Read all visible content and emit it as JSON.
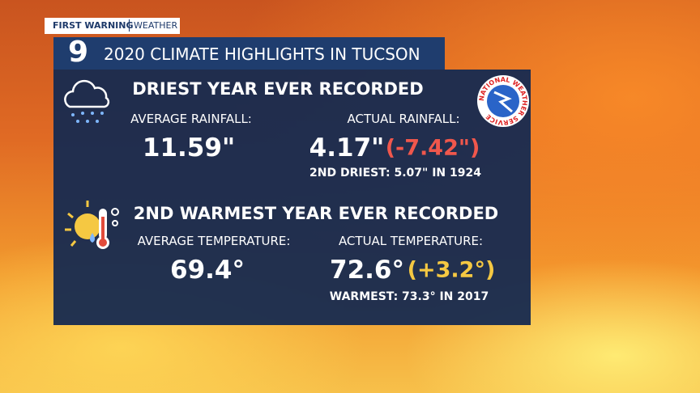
{
  "brand": {
    "name": "FIRST WARNING",
    "section": "WEATHER",
    "channel": "9"
  },
  "title": "2020 CLIMATE HIGHLIGHTS IN TUCSON",
  "logo": "NATIONAL WEATHER SERVICE",
  "rain": {
    "heading": "DRIEST YEAR EVER RECORDED",
    "average_label": "AVERAGE RAINFALL:",
    "average_value": "11.59\"",
    "actual_label": "ACTUAL RAINFALL:",
    "actual_value": "4.17\"",
    "difference": "(-7.42\")",
    "note": "2ND DRIEST: 5.07\" IN 1924"
  },
  "temperature": {
    "heading": "2ND WARMEST YEAR EVER RECORDED",
    "average_label": "AVERAGE TEMPERATURE:",
    "average_value": "69.4°",
    "actual_label": "ACTUAL TEMPERATURE:",
    "actual_value": "72.6°",
    "difference": "(+3.2°)",
    "note": "WARMEST: 73.3° IN 2017"
  }
}
